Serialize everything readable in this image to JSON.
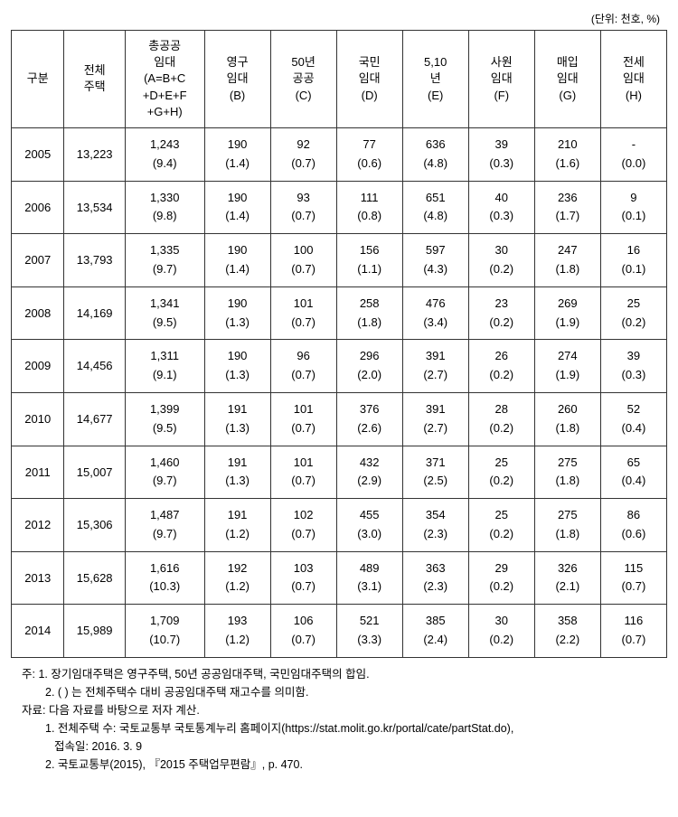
{
  "unit_label": "(단위: 천호, %)",
  "headers": {
    "col1": "구분",
    "col2": "전체\n주택",
    "col3": "총공공\n임대\n(A=B+C\n+D+E+F\n+G+H)",
    "col4": "영구\n임대\n(B)",
    "col5": "50년\n공공\n(C)",
    "col6": "국민\n임대\n(D)",
    "col7": "5,10\n년\n(E)",
    "col8": "사원\n임대\n(F)",
    "col9": "매입\n임대\n(G)",
    "col10": "전세\n임대\n(H)"
  },
  "rows": [
    {
      "year": "2005",
      "total": "13,223",
      "a_v": "1,243",
      "a_p": "(9.4)",
      "b_v": "190",
      "b_p": "(1.4)",
      "c_v": "92",
      "c_p": "(0.7)",
      "d_v": "77",
      "d_p": "(0.6)",
      "e_v": "636",
      "e_p": "(4.8)",
      "f_v": "39",
      "f_p": "(0.3)",
      "g_v": "210",
      "g_p": "(1.6)",
      "h_v": "-",
      "h_p": "(0.0)"
    },
    {
      "year": "2006",
      "total": "13,534",
      "a_v": "1,330",
      "a_p": "(9.8)",
      "b_v": "190",
      "b_p": "(1.4)",
      "c_v": "93",
      "c_p": "(0.7)",
      "d_v": "111",
      "d_p": "(0.8)",
      "e_v": "651",
      "e_p": "(4.8)",
      "f_v": "40",
      "f_p": "(0.3)",
      "g_v": "236",
      "g_p": "(1.7)",
      "h_v": "9",
      "h_p": "(0.1)"
    },
    {
      "year": "2007",
      "total": "13,793",
      "a_v": "1,335",
      "a_p": "(9.7)",
      "b_v": "190",
      "b_p": "(1.4)",
      "c_v": "100",
      "c_p": "(0.7)",
      "d_v": "156",
      "d_p": "(1.1)",
      "e_v": "597",
      "e_p": "(4.3)",
      "f_v": "30",
      "f_p": "(0.2)",
      "g_v": "247",
      "g_p": "(1.8)",
      "h_v": "16",
      "h_p": "(0.1)"
    },
    {
      "year": "2008",
      "total": "14,169",
      "a_v": "1,341",
      "a_p": "(9.5)",
      "b_v": "190",
      "b_p": "(1.3)",
      "c_v": "101",
      "c_p": "(0.7)",
      "d_v": "258",
      "d_p": "(1.8)",
      "e_v": "476",
      "e_p": "(3.4)",
      "f_v": "23",
      "f_p": "(0.2)",
      "g_v": "269",
      "g_p": "(1.9)",
      "h_v": "25",
      "h_p": "(0.2)"
    },
    {
      "year": "2009",
      "total": "14,456",
      "a_v": "1,311",
      "a_p": "(9.1)",
      "b_v": "190",
      "b_p": "(1.3)",
      "c_v": "96",
      "c_p": "(0.7)",
      "d_v": "296",
      "d_p": "(2.0)",
      "e_v": "391",
      "e_p": "(2.7)",
      "f_v": "26",
      "f_p": "(0.2)",
      "g_v": "274",
      "g_p": "(1.9)",
      "h_v": "39",
      "h_p": "(0.3)"
    },
    {
      "year": "2010",
      "total": "14,677",
      "a_v": "1,399",
      "a_p": "(9.5)",
      "b_v": "191",
      "b_p": "(1.3)",
      "c_v": "101",
      "c_p": "(0.7)",
      "d_v": "376",
      "d_p": "(2.6)",
      "e_v": "391",
      "e_p": "(2.7)",
      "f_v": "28",
      "f_p": "(0.2)",
      "g_v": "260",
      "g_p": "(1.8)",
      "h_v": "52",
      "h_p": "(0.4)"
    },
    {
      "year": "2011",
      "total": "15,007",
      "a_v": "1,460",
      "a_p": "(9.7)",
      "b_v": "191",
      "b_p": "(1.3)",
      "c_v": "101",
      "c_p": "(0.7)",
      "d_v": "432",
      "d_p": "(2.9)",
      "e_v": "371",
      "e_p": "(2.5)",
      "f_v": "25",
      "f_p": "(0.2)",
      "g_v": "275",
      "g_p": "(1.8)",
      "h_v": "65",
      "h_p": "(0.4)"
    },
    {
      "year": "2012",
      "total": "15,306",
      "a_v": "1,487",
      "a_p": "(9.7)",
      "b_v": "191",
      "b_p": "(1.2)",
      "c_v": "102",
      "c_p": "(0.7)",
      "d_v": "455",
      "d_p": "(3.0)",
      "e_v": "354",
      "e_p": "(2.3)",
      "f_v": "25",
      "f_p": "(0.2)",
      "g_v": "275",
      "g_p": "(1.8)",
      "h_v": "86",
      "h_p": "(0.6)"
    },
    {
      "year": "2013",
      "total": "15,628",
      "a_v": "1,616",
      "a_p": "(10.3)",
      "b_v": "192",
      "b_p": "(1.2)",
      "c_v": "103",
      "c_p": "(0.7)",
      "d_v": "489",
      "d_p": "(3.1)",
      "e_v": "363",
      "e_p": "(2.3)",
      "f_v": "29",
      "f_p": "(0.2)",
      "g_v": "326",
      "g_p": "(2.1)",
      "h_v": "115",
      "h_p": "(0.7)"
    },
    {
      "year": "2014",
      "total": "15,989",
      "a_v": "1,709",
      "a_p": "(10.7)",
      "b_v": "193",
      "b_p": "(1.2)",
      "c_v": "106",
      "c_p": "(0.7)",
      "d_v": "521",
      "d_p": "(3.3)",
      "e_v": "385",
      "e_p": "(2.4)",
      "f_v": "30",
      "f_p": "(0.2)",
      "g_v": "358",
      "g_p": "(2.2)",
      "h_v": "116",
      "h_p": "(0.7)"
    }
  ],
  "notes": {
    "n1_label": "주:",
    "n1_1": "1. 장기임대주택은 영구주택, 50년 공공임대주택, 국민임대주택의 합임.",
    "n1_2": "2. ( ) 는 전체주택수 대비 공공임대주택 재고수를 의미함.",
    "n2_label": "자료:",
    "n2_0": "다음 자료를 바탕으로 저자 계산.",
    "n2_1": "1. 전체주택 수: 국토교통부 국토통계누리 홈페이지(https://stat.molit.go.kr/portal/cate/partStat.do),",
    "n2_1b": "접속일: 2016. 3. 9",
    "n2_2": "2. 국토교통부(2015), 『2015 주택업무편람』, p. 470."
  }
}
